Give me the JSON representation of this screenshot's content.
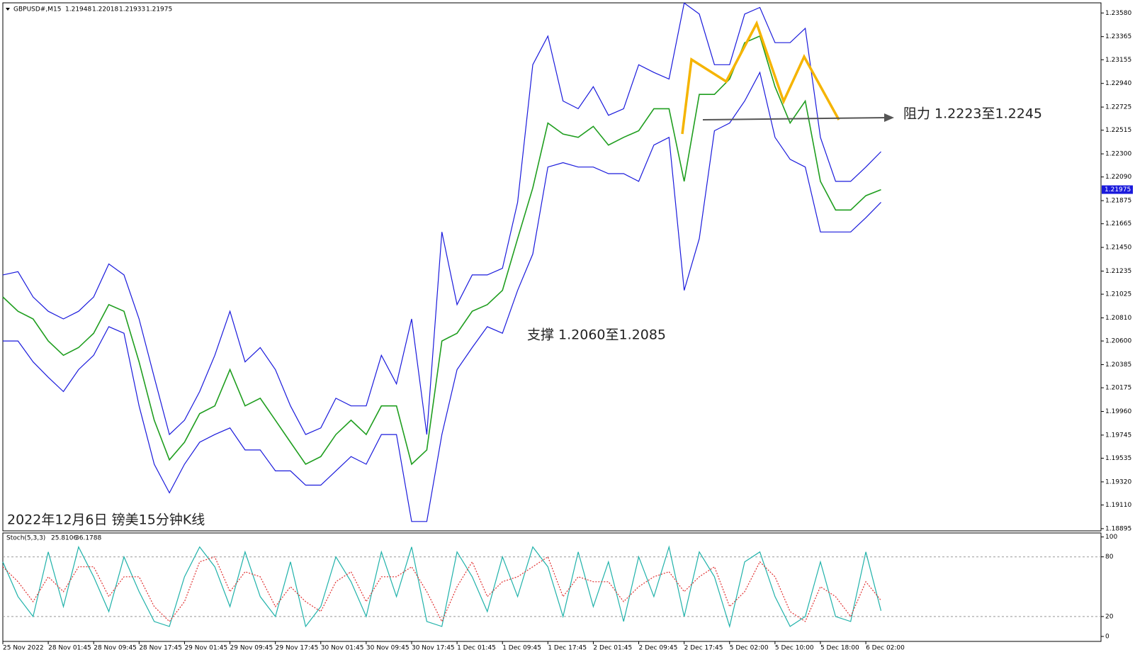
{
  "chart_data": [
    {
      "type": "line",
      "symbol": "GBPUSD#,M15",
      "ohlc": [
        1.21948,
        1.22018,
        1.21933,
        1.21975
      ],
      "annotations": [
        "阻力 1.2223至1.2245",
        "支撑 1.2060至1.2085",
        "2022年12月6日 镑美15分钟K线"
      ],
      "categories": [
        "25 Nov 2022",
        null,
        null,
        "28 Nov 01:45",
        null,
        null,
        "28 Nov 09:45",
        null,
        null,
        "28 Nov 17:45",
        null,
        null,
        "29 Nov 01:45",
        null,
        null,
        "29 Nov 09:45",
        null,
        null,
        "29 Nov 17:45",
        null,
        null,
        "30 Nov 01:45",
        null,
        null,
        "30 Nov 09:45",
        null,
        null,
        "30 Nov 17:45",
        null,
        null,
        "1 Dec 01:45",
        null,
        null,
        "1 Dec 09:45",
        null,
        null,
        "1 Dec 17:45",
        null,
        null,
        "2 Dec 01:45",
        null,
        null,
        "2 Dec 09:45",
        null,
        null,
        "2 Dec 17:45",
        null,
        null,
        "5 Dec 02:00",
        null,
        null,
        "5 Dec 10:00",
        null,
        null,
        "5 Dec 18:00",
        null,
        null,
        "6 Dec 02:00",
        null
      ],
      "ylim": [
        1.18875,
        1.23672
      ],
      "yticks": [
        {
          "value": 1.2358,
          "label": "1.23580"
        },
        1.23365,
        1.23155,
        {
          "value": 1.2294,
          "label": "1.22940"
        },
        1.22725,
        1.22515,
        {
          "value": 1.223,
          "label": "1.22300"
        },
        {
          "value": 1.2209,
          "label": "1.22090"
        },
        1.21875,
        1.21665,
        {
          "value": 1.2145,
          "label": "1.21450"
        },
        1.21235,
        1.21025,
        {
          "value": 1.2081,
          "label": "1.20810"
        },
        {
          "value": 1.206,
          "label": "1.20600"
        },
        1.20385,
        1.20175,
        {
          "value": 1.1996,
          "label": "1.19960"
        },
        1.19745,
        1.19535,
        {
          "value": 1.1932,
          "label": "1.19320"
        },
        {
          "value": 1.1911,
          "label": "1.19110"
        },
        1.18895
      ],
      "series": [
        {
          "color": "#1f9e1f",
          "values": [
            1.21,
            1.2087,
            1.208,
            1.206,
            1.2047,
            1.2054,
            1.2067,
            1.2093,
            1.2087,
            1.2041,
            1.1988,
            1.1952,
            1.1968,
            1.1994,
            1.2001,
            1.2034,
            1.2001,
            1.2008,
            1.1988,
            1.1968,
            1.1948,
            1.1955,
            1.1975,
            1.1988,
            1.1975,
            1.2001,
            1.2001,
            1.1948,
            1.1961,
            1.206,
            1.2067,
            1.2087,
            1.2093,
            1.2106,
            1.2153,
            1.2199,
            1.2258,
            1.2248,
            1.2245,
            1.2255,
            1.2238,
            1.2245,
            1.2251,
            1.2271,
            1.2271,
            1.2205,
            1.2284,
            1.2284,
            1.2298,
            1.2331,
            1.2337,
            1.2291,
            1.2258,
            1.2278,
            1.2205,
            1.2179,
            1.2179,
            1.2192,
            1.21975
          ]
        },
        {
          "color": "#1a1adc",
          "values": [
            1.212,
            1.2123,
            1.21,
            1.2087,
            1.208,
            1.2087,
            1.21,
            1.213,
            1.212,
            1.208,
            1.2027,
            1.1975,
            1.1988,
            1.2014,
            1.2047,
            1.2087,
            1.2041,
            1.2054,
            1.2034,
            1.2001,
            1.1975,
            1.1981,
            1.2008,
            1.2001,
            1.2001,
            1.2047,
            1.2021,
            1.208,
            1.1975,
            1.2159,
            1.2093,
            1.212,
            1.212,
            1.2126,
            1.2186,
            1.2311,
            1.2337,
            1.2278,
            1.2271,
            1.2291,
            1.2265,
            1.2271,
            1.2311,
            1.2304,
            1.2298,
            1.2367,
            1.2357,
            1.2311,
            1.2311,
            1.2357,
            1.2363,
            1.2331,
            1.2331,
            1.2344,
            1.2245,
            1.2205,
            1.2205,
            1.2218,
            1.2232
          ]
        },
        {
          "color": "#1a1adc",
          "values": [
            1.206,
            1.206,
            1.2041,
            1.2027,
            1.2014,
            1.2034,
            1.2047,
            1.2073,
            1.2067,
            1.2001,
            1.1948,
            1.1922,
            1.1948,
            1.1968,
            1.1975,
            1.1981,
            1.1961,
            1.1961,
            1.1942,
            1.1942,
            1.1929,
            1.1929,
            1.1942,
            1.1955,
            1.1948,
            1.1975,
            1.1975,
            1.1896,
            1.1896,
            1.1975,
            1.2034,
            1.2054,
            1.2073,
            1.2067,
            1.2106,
            1.2139,
            1.2218,
            1.2222,
            1.2218,
            1.2218,
            1.2212,
            1.2212,
            1.2205,
            1.2238,
            1.2245,
            1.2106,
            1.2153,
            1.2251,
            1.2258,
            1.2278,
            1.2304,
            1.2245,
            1.2225,
            1.2218,
            1.2159,
            1.2159,
            1.2159,
            1.2172,
            1.2186
          ]
        }
      ]
    },
    {
      "type": "line",
      "title": "Stoch(5,3,3)",
      "ylim": [
        -5,
        104
      ],
      "yticks": [
        0,
        20,
        80,
        100
      ],
      "grid": [
        20,
        80
      ],
      "series": [
        {
          "color": "#20b2aa",
          "values": [
            75,
            40,
            20,
            85,
            30,
            90,
            60,
            25,
            80,
            45,
            15,
            10,
            60,
            90,
            70,
            30,
            85,
            40,
            20,
            75,
            10,
            30,
            80,
            55,
            20,
            85,
            40,
            90,
            15,
            10,
            85,
            60,
            25,
            80,
            40,
            90,
            70,
            20,
            85,
            30,
            75,
            15,
            80,
            40,
            90,
            20,
            85,
            60,
            10,
            75,
            85,
            40,
            10,
            20,
            75,
            20,
            15,
            85,
            25.8106
          ]
        },
        {
          "color": "#e03030",
          "dashed": true,
          "values": [
            70,
            55,
            35,
            60,
            45,
            70,
            70,
            40,
            60,
            60,
            30,
            15,
            35,
            75,
            80,
            45,
            65,
            60,
            30,
            50,
            35,
            25,
            55,
            65,
            35,
            60,
            60,
            70,
            45,
            15,
            50,
            75,
            40,
            55,
            60,
            70,
            80,
            40,
            60,
            55,
            55,
            35,
            50,
            60,
            65,
            45,
            60,
            70,
            30,
            45,
            75,
            60,
            25,
            15,
            50,
            40,
            20,
            55,
            36.1788
          ]
        }
      ]
    }
  ]
}
